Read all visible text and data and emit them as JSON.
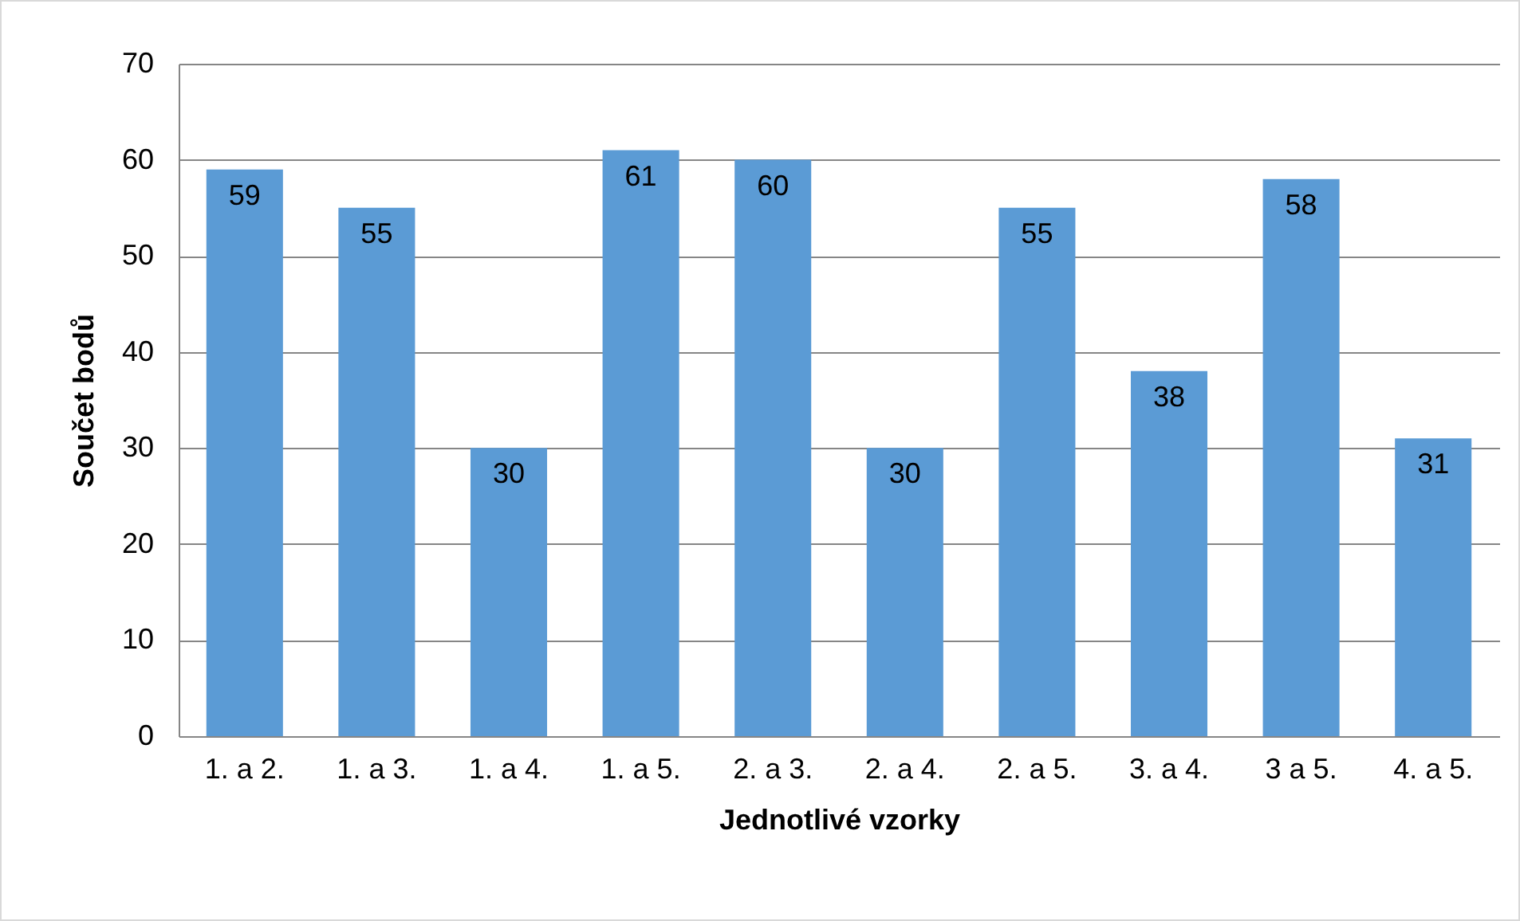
{
  "chart_data": {
    "type": "bar",
    "xlabel": "Jednotlivé vzorky",
    "ylabel": "Součet bodů",
    "categories": [
      "1. a 2.",
      "1. a 3.",
      "1. a 4.",
      "1. a 5.",
      "2. a 3.",
      "2. a 4.",
      "2. a 5.",
      "3. a 4.",
      "3 a 5.",
      "4. a 5."
    ],
    "values": [
      59,
      55,
      30,
      61,
      60,
      30,
      55,
      38,
      58,
      31
    ],
    "color": "#5b9bd5",
    "ylim": [
      0,
      70
    ],
    "yticks": [
      0,
      10,
      20,
      30,
      40,
      50,
      60,
      70
    ],
    "grid": "y",
    "data_labels": true
  }
}
